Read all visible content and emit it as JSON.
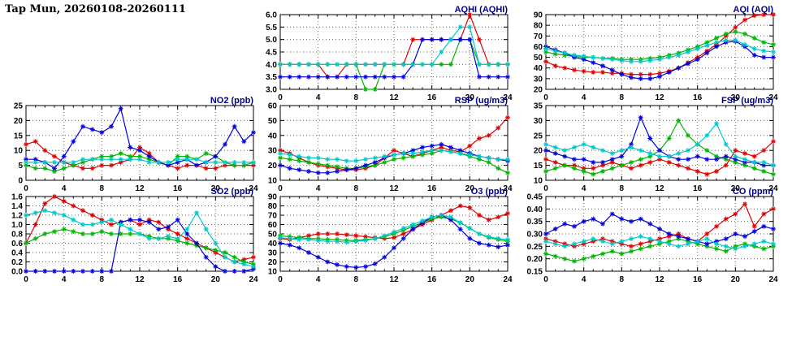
{
  "page": {
    "title": "Tap Mun, 20260108-20260111"
  },
  "colors": {
    "red": "#dd0000",
    "green": "#00b400",
    "blue": "#0000dd",
    "cyan": "#00c8c8",
    "title": "#000080",
    "grid": "#666666",
    "axis": "#000000"
  },
  "chart_data": [
    {
      "id": "aqhi",
      "type": "line",
      "title": "AQHI (AQHI)",
      "x_range": [
        0,
        24
      ],
      "x_ticks": [
        0,
        4,
        8,
        12,
        16,
        20,
        24
      ],
      "x_step": 1,
      "x_minor": 1,
      "ylim": [
        3,
        6
      ],
      "y_step": 0.5,
      "y_decimals": 1,
      "grid": true,
      "legend": "none",
      "series": [
        {
          "name": "red",
          "values": [
            4,
            4,
            4,
            4,
            4,
            3.5,
            3.5,
            4,
            4,
            4,
            4,
            4,
            4,
            4,
            5,
            5,
            5,
            5,
            5,
            5,
            6,
            5,
            4,
            4,
            4
          ]
        },
        {
          "name": "green",
          "values": [
            4,
            4,
            4,
            4,
            4,
            4,
            4,
            4,
            4,
            3,
            3,
            4,
            4,
            4,
            4,
            4,
            4,
            4,
            4,
            5,
            5,
            4,
            4,
            4,
            4
          ]
        },
        {
          "name": "blue",
          "values": [
            3.5,
            3.5,
            3.5,
            3.5,
            3.5,
            3.5,
            3.5,
            3.5,
            3.5,
            3.5,
            3.5,
            3.5,
            3.5,
            3.5,
            4,
            5,
            5,
            5,
            5,
            5,
            5,
            3.5,
            3.5,
            3.5,
            3.5
          ]
        },
        {
          "name": "cyan",
          "values": [
            4,
            4,
            4,
            4,
            4,
            4,
            4,
            4,
            4,
            4,
            4,
            4,
            4,
            4,
            4,
            4,
            4,
            4.5,
            5,
            5.5,
            5.5,
            4,
            4,
            4,
            4
          ]
        }
      ]
    },
    {
      "id": "aqi",
      "type": "line",
      "title": "AQI (AQI)",
      "x_range": [
        0,
        24
      ],
      "x_ticks": [
        0,
        4,
        8,
        12,
        16,
        20,
        24
      ],
      "x_step": 1,
      "x_minor": 1,
      "ylim": [
        20,
        90
      ],
      "y_step": 10,
      "y_decimals": 0,
      "grid": true,
      "legend": "none",
      "series": [
        {
          "name": "red",
          "values": [
            46,
            42,
            40,
            38,
            37,
            36,
            36,
            35,
            35,
            34,
            34,
            34,
            35,
            37,
            40,
            45,
            50,
            56,
            62,
            70,
            78,
            85,
            89,
            90,
            90
          ]
        },
        {
          "name": "green",
          "values": [
            55,
            53,
            52,
            51,
            50,
            50,
            49,
            49,
            48,
            48,
            48,
            49,
            50,
            52,
            54,
            57,
            60,
            64,
            68,
            72,
            74,
            72,
            68,
            64,
            62
          ]
        },
        {
          "name": "blue",
          "values": [
            60,
            57,
            54,
            50,
            48,
            45,
            42,
            38,
            34,
            31,
            30,
            30,
            32,
            36,
            40,
            44,
            48,
            54,
            60,
            64,
            65,
            60,
            52,
            50,
            50
          ]
        },
        {
          "name": "cyan",
          "values": [
            58,
            56,
            54,
            52,
            51,
            50,
            49,
            48,
            47,
            46,
            46,
            47,
            48,
            50,
            52,
            55,
            58,
            61,
            64,
            66,
            66,
            62,
            58,
            56,
            55
          ]
        }
      ]
    },
    {
      "id": "no2",
      "type": "line",
      "title": "NO2 (ppb)",
      "x_range": [
        0,
        24
      ],
      "x_ticks": [
        0,
        4,
        8,
        12,
        16,
        20,
        24
      ],
      "x_step": 1,
      "x_minor": 1,
      "ylim": [
        0,
        25
      ],
      "y_step": 5,
      "y_decimals": 0,
      "grid": true,
      "legend": "none",
      "series": [
        {
          "name": "red",
          "values": [
            12,
            13,
            10,
            8,
            6,
            5,
            4,
            4,
            5,
            5,
            6,
            7,
            11,
            9,
            6,
            5,
            4,
            5,
            5,
            4,
            4,
            5,
            5,
            5,
            5
          ]
        },
        {
          "name": "green",
          "values": [
            5,
            4,
            4,
            3,
            4,
            5,
            6,
            7,
            8,
            8,
            9,
            8,
            8,
            7,
            6,
            5,
            8,
            8,
            7,
            9,
            8,
            6,
            5,
            5,
            6
          ]
        },
        {
          "name": "blue",
          "values": [
            7,
            7,
            6,
            4,
            8,
            13,
            18,
            17,
            16,
            18,
            24,
            11,
            10,
            8,
            6,
            5,
            6,
            7,
            5,
            6,
            8,
            12,
            18,
            13,
            16
          ]
        },
        {
          "name": "cyan",
          "values": [
            6,
            6,
            6,
            6,
            6,
            6,
            7,
            7,
            7,
            7,
            7,
            7,
            7,
            6,
            6,
            6,
            7,
            7,
            7,
            6,
            6,
            6,
            6,
            6,
            6
          ]
        }
      ]
    },
    {
      "id": "rsp",
      "type": "line",
      "title": "RSP (ug/m3)",
      "x_range": [
        0,
        24
      ],
      "x_ticks": [
        0,
        4,
        8,
        12,
        16,
        20,
        24
      ],
      "x_step": 1,
      "x_minor": 1,
      "ylim": [
        10,
        60
      ],
      "y_step": 10,
      "y_decimals": 0,
      "grid": true,
      "legend": "none",
      "series": [
        {
          "name": "red",
          "values": [
            30,
            28,
            25,
            22,
            20,
            19,
            18,
            17,
            17,
            18,
            20,
            25,
            30,
            28,
            26,
            28,
            30,
            32,
            30,
            29,
            33,
            38,
            40,
            45,
            52
          ]
        },
        {
          "name": "green",
          "values": [
            25,
            24,
            23,
            22,
            21,
            20,
            19,
            18,
            18,
            19,
            20,
            22,
            24,
            25,
            26,
            27,
            28,
            30,
            29,
            28,
            26,
            24,
            22,
            18,
            15
          ]
        },
        {
          "name": "blue",
          "values": [
            20,
            18,
            17,
            16,
            15,
            15,
            16,
            17,
            18,
            20,
            22,
            25,
            27,
            28,
            30,
            32,
            33,
            34,
            32,
            30,
            28,
            26,
            25,
            24,
            23
          ]
        },
        {
          "name": "cyan",
          "values": [
            28,
            27,
            26,
            25,
            25,
            24,
            24,
            23,
            23,
            24,
            25,
            26,
            27,
            28,
            28,
            29,
            30,
            30,
            29,
            28,
            27,
            26,
            25,
            24,
            24
          ]
        }
      ]
    },
    {
      "id": "fsp",
      "type": "line",
      "title": "FSP (ug/m3)",
      "x_range": [
        0,
        24
      ],
      "x_ticks": [
        0,
        4,
        8,
        12,
        16,
        20,
        24
      ],
      "x_step": 1,
      "x_minor": 1,
      "ylim": [
        10,
        35
      ],
      "y_step": 5,
      "y_decimals": 0,
      "grid": true,
      "legend": "none",
      "series": [
        {
          "name": "red",
          "values": [
            17,
            16,
            15,
            15,
            14,
            14,
            15,
            16,
            15,
            14,
            15,
            16,
            17,
            16,
            15,
            14,
            13,
            12,
            13,
            15,
            20,
            19,
            18,
            20,
            23
          ]
        },
        {
          "name": "green",
          "values": [
            13,
            14,
            15,
            14,
            13,
            12,
            13,
            14,
            15,
            16,
            17,
            18,
            20,
            24,
            30,
            25,
            22,
            20,
            18,
            17,
            16,
            15,
            14,
            13,
            12
          ]
        },
        {
          "name": "blue",
          "values": [
            20,
            19,
            18,
            17,
            17,
            16,
            16,
            17,
            18,
            22,
            31,
            24,
            20,
            18,
            17,
            17,
            18,
            17,
            17,
            18,
            17,
            16,
            16,
            15,
            15
          ]
        },
        {
          "name": "cyan",
          "values": [
            22,
            21,
            20,
            21,
            22,
            21,
            20,
            19,
            20,
            21,
            20,
            19,
            18,
            18,
            19,
            20,
            22,
            25,
            29,
            22,
            18,
            17,
            16,
            16,
            15
          ]
        }
      ]
    },
    {
      "id": "so2",
      "type": "line",
      "title": "SO2 (ppb)",
      "x_range": [
        0,
        24
      ],
      "x_ticks": [
        0,
        4,
        8,
        12,
        16,
        20,
        24
      ],
      "x_step": 1,
      "x_minor": 1,
      "ylim": [
        0,
        1.6
      ],
      "y_step": 0.2,
      "y_decimals": 1,
      "grid": true,
      "legend": "none",
      "series": [
        {
          "name": "red",
          "values": [
            0.6,
            1.0,
            1.45,
            1.6,
            1.5,
            1.4,
            1.3,
            1.2,
            1.1,
            1.0,
            1.05,
            1.1,
            1.0,
            1.1,
            1.05,
            0.9,
            0.8,
            0.7,
            0.6,
            0.5,
            0.4,
            0.3,
            0.2,
            0.25,
            0.3
          ]
        },
        {
          "name": "green",
          "values": [
            0.6,
            0.7,
            0.8,
            0.85,
            0.9,
            0.85,
            0.8,
            0.8,
            0.85,
            0.8,
            0.8,
            0.8,
            0.8,
            0.75,
            0.7,
            0.7,
            0.65,
            0.6,
            0.55,
            0.5,
            0.45,
            0.4,
            0.3,
            0.2,
            0.15
          ]
        },
        {
          "name": "blue",
          "values": [
            0,
            0,
            0,
            0,
            0,
            0,
            0,
            0,
            0,
            0,
            1.05,
            1.1,
            1.1,
            1.05,
            0.9,
            0.95,
            1.1,
            0.8,
            0.6,
            0.3,
            0.1,
            0,
            0,
            0,
            0.05
          ]
        },
        {
          "name": "cyan",
          "values": [
            1.2,
            1.25,
            1.3,
            1.25,
            1.2,
            1.1,
            1.0,
            1.0,
            1.05,
            1.1,
            1.0,
            0.9,
            0.8,
            0.7,
            0.7,
            0.75,
            0.7,
            0.9,
            1.25,
            0.9,
            0.6,
            0.3,
            0.2,
            0.15,
            0.1
          ]
        }
      ]
    },
    {
      "id": "o3",
      "type": "line",
      "title": "O3 (ppb)",
      "x_range": [
        0,
        24
      ],
      "x_ticks": [
        0,
        4,
        8,
        12,
        16,
        20,
        24
      ],
      "x_step": 1,
      "x_minor": 1,
      "ylim": [
        10,
        90
      ],
      "y_step": 10,
      "y_decimals": 0,
      "grid": true,
      "legend": "none",
      "series": [
        {
          "name": "red",
          "values": [
            45,
            44,
            46,
            48,
            50,
            50,
            50,
            49,
            48,
            47,
            46,
            45,
            46,
            50,
            55,
            60,
            65,
            70,
            75,
            80,
            78,
            70,
            65,
            68,
            72
          ]
        },
        {
          "name": "green",
          "values": [
            48,
            47,
            46,
            45,
            45,
            44,
            44,
            43,
            43,
            44,
            45,
            47,
            50,
            54,
            58,
            62,
            66,
            68,
            66,
            62,
            56,
            50,
            46,
            44,
            42
          ]
        },
        {
          "name": "blue",
          "values": [
            40,
            38,
            35,
            30,
            25,
            20,
            17,
            15,
            14,
            15,
            18,
            25,
            35,
            45,
            55,
            62,
            68,
            70,
            65,
            55,
            45,
            40,
            38,
            36,
            38
          ]
        },
        {
          "name": "cyan",
          "values": [
            46,
            45,
            44,
            44,
            43,
            42,
            42,
            41,
            42,
            43,
            45,
            48,
            52,
            56,
            60,
            64,
            68,
            70,
            68,
            62,
            56,
            50,
            47,
            45,
            44
          ]
        }
      ]
    },
    {
      "id": "co",
      "type": "line",
      "title": "CO (ppm)",
      "x_range": [
        0,
        24
      ],
      "x_ticks": [
        0,
        4,
        8,
        12,
        16,
        20,
        24
      ],
      "x_step": 1,
      "x_minor": 1,
      "ylim": [
        0.15,
        0.45
      ],
      "y_step": 0.05,
      "y_decimals": 2,
      "grid": true,
      "legend": "none",
      "series": [
        {
          "name": "red",
          "values": [
            0.28,
            0.27,
            0.26,
            0.25,
            0.26,
            0.27,
            0.28,
            0.27,
            0.26,
            0.25,
            0.26,
            0.27,
            0.28,
            0.29,
            0.3,
            0.28,
            0.27,
            0.3,
            0.33,
            0.36,
            0.38,
            0.42,
            0.33,
            0.38,
            0.4
          ]
        },
        {
          "name": "green",
          "values": [
            0.22,
            0.21,
            0.2,
            0.19,
            0.2,
            0.21,
            0.22,
            0.23,
            0.22,
            0.23,
            0.24,
            0.25,
            0.26,
            0.27,
            0.28,
            0.27,
            0.26,
            0.25,
            0.24,
            0.23,
            0.25,
            0.26,
            0.25,
            0.24,
            0.25
          ]
        },
        {
          "name": "blue",
          "values": [
            0.3,
            0.32,
            0.34,
            0.33,
            0.35,
            0.36,
            0.34,
            0.38,
            0.36,
            0.35,
            0.36,
            0.34,
            0.32,
            0.3,
            0.29,
            0.28,
            0.27,
            0.26,
            0.27,
            0.28,
            0.3,
            0.29,
            0.31,
            0.33,
            0.32
          ]
        },
        {
          "name": "cyan",
          "values": [
            0.27,
            0.26,
            0.25,
            0.26,
            0.27,
            0.28,
            0.27,
            0.26,
            0.27,
            0.28,
            0.29,
            0.28,
            0.27,
            0.26,
            0.25,
            0.26,
            0.27,
            0.28,
            0.26,
            0.25,
            0.24,
            0.25,
            0.26,
            0.27,
            0.26
          ]
        }
      ]
    }
  ]
}
